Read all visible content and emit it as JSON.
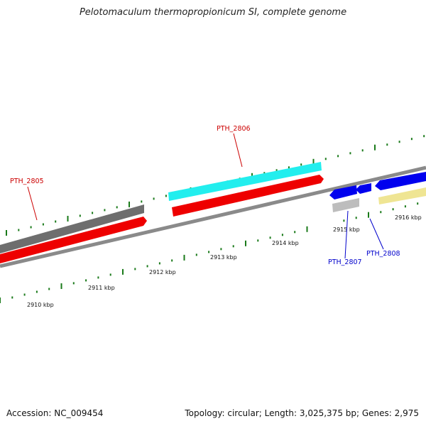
{
  "title": "Pelotomaculum thermopropionicum SI, complete genome",
  "footer": {
    "accession": "Accession: NC_009454",
    "summary": "Topology: circular; Length: 3,025,375 bp; Genes: 2,975"
  },
  "ticks": [
    "2910 kbp",
    "2911 kbp",
    "2912 kbp",
    "2913 kbp",
    "2914 kbp",
    "2915 kbp",
    "2916 kbp"
  ],
  "genes": [
    {
      "label": "PTH_2805",
      "color": "#cc0000"
    },
    {
      "label": "PTH_2806",
      "color": "#cc0000"
    },
    {
      "label": "PTH_2807",
      "color": "#0000cc"
    },
    {
      "label": "PTH_2808",
      "color": "#0000cc"
    }
  ],
  "colors": {
    "forward_cds": "#ff0000",
    "reverse_cds": "#0000ff",
    "rna": "#00ffff",
    "gene_grey": "#6e6e6e",
    "light_grey": "#bdbdbd",
    "yellow": "#f0e68c",
    "tick": "#1a7a1a",
    "backbone": "#888888"
  }
}
